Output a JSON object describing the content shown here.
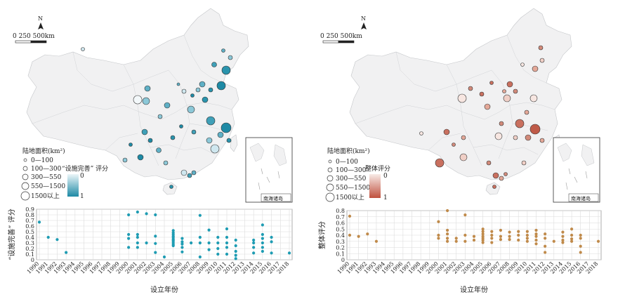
{
  "left_panel": {
    "scale_label": "0  250 500km",
    "north_label": "N",
    "legend_area_title": "陆地面积(km²)",
    "legend_area_classes": [
      "0—100",
      "100—300",
      "300—550",
      "550—1500",
      "1500以上"
    ],
    "legend_score_title": "“设施完善” 评分",
    "legend_score_min": "0",
    "legend_score_max": "1",
    "inset_label": "南海诸岛",
    "color_high": "#1e8aa5",
    "color_low": "#e6f3f7"
  },
  "right_panel": {
    "scale_label": "0  250 500km",
    "north_label": "N",
    "legend_area_title": "陆地面积(km²)",
    "legend_area_classes": [
      "0—100",
      "100—300",
      "300—550",
      "550—1500",
      "1500以上"
    ],
    "legend_score_title": "整体评分",
    "legend_score_min": "0",
    "legend_score_max": "1",
    "inset_label": "南海诸岛",
    "color_high": "#c0513f",
    "color_low": "#f8e8e4"
  },
  "chart_data": [
    {
      "type": "scatter",
      "color": "#1e9cb3",
      "xlabel": "设立年份",
      "ylabel": "“设施完善” 评分",
      "ylim": [
        0,
        0.9
      ],
      "yticks": [
        "0",
        "0.1",
        "0.2",
        "0.3",
        "0.4",
        "0.5",
        "0.6",
        "0.7",
        "0.8",
        "0.9"
      ],
      "xticks": [
        "1990",
        "1991",
        "1992",
        "1993",
        "1994",
        "1995",
        "1996",
        "1997",
        "1998",
        "1999",
        "2000",
        "2001",
        "2002",
        "2003",
        "2004",
        "2005",
        "2006",
        "2007",
        "2008",
        "2009",
        "2010",
        "2011",
        "2012",
        "2013",
        "2014",
        "2015",
        "2016",
        "2017",
        "2018"
      ],
      "points": [
        [
          1990,
          0.67
        ],
        [
          1991,
          0.4
        ],
        [
          1992,
          0.36
        ],
        [
          1993,
          0.13
        ],
        [
          2000,
          0.8
        ],
        [
          2000,
          0.45
        ],
        [
          2000,
          0.38
        ],
        [
          2000,
          0.22
        ],
        [
          2001,
          0.85
        ],
        [
          2001,
          0.45
        ],
        [
          2001,
          0.4
        ],
        [
          2001,
          0.3
        ],
        [
          2001,
          0.22
        ],
        [
          2002,
          0.82
        ],
        [
          2002,
          0.3
        ],
        [
          2003,
          0.8
        ],
        [
          2003,
          0.42
        ],
        [
          2003,
          0.29
        ],
        [
          2003,
          0.13
        ],
        [
          2004,
          0.05
        ],
        [
          2005,
          0.52
        ],
        [
          2005,
          0.48
        ],
        [
          2005,
          0.45
        ],
        [
          2005,
          0.42
        ],
        [
          2005,
          0.4
        ],
        [
          2005,
          0.37
        ],
        [
          2005,
          0.35
        ],
        [
          2005,
          0.33
        ],
        [
          2005,
          0.3
        ],
        [
          2005,
          0.27
        ],
        [
          2005,
          0.25
        ],
        [
          2006,
          0.38
        ],
        [
          2006,
          0.32
        ],
        [
          2006,
          0.28
        ],
        [
          2006,
          0.22
        ],
        [
          2006,
          0.14
        ],
        [
          2007,
          0.3
        ],
        [
          2008,
          0.79
        ],
        [
          2008,
          0.4
        ],
        [
          2008,
          0.3
        ],
        [
          2008,
          0.05
        ],
        [
          2009,
          0.53
        ],
        [
          2009,
          0.3
        ],
        [
          2009,
          0.18
        ],
        [
          2010,
          0.4
        ],
        [
          2010,
          0.3
        ],
        [
          2010,
          0.2
        ],
        [
          2010,
          0.1
        ],
        [
          2011,
          0.55
        ],
        [
          2011,
          0.4
        ],
        [
          2011,
          0.3
        ],
        [
          2011,
          0.22
        ],
        [
          2011,
          0.1
        ],
        [
          2012,
          0.35
        ],
        [
          2012,
          0.25
        ],
        [
          2012,
          0.15
        ],
        [
          2012,
          0.08
        ],
        [
          2012,
          0.02
        ],
        [
          2014,
          0.35
        ],
        [
          2014,
          0.3
        ],
        [
          2014,
          0.22
        ],
        [
          2014,
          0.12
        ],
        [
          2015,
          0.62
        ],
        [
          2015,
          0.45
        ],
        [
          2015,
          0.38
        ],
        [
          2015,
          0.3
        ],
        [
          2015,
          0.22
        ],
        [
          2015,
          0.15
        ],
        [
          2016,
          0.4
        ],
        [
          2016,
          0.32
        ],
        [
          2016,
          0.12
        ],
        [
          2018,
          0.12
        ]
      ]
    },
    {
      "type": "scatter",
      "color": "#c08a4a",
      "xlabel": "设立年份",
      "ylabel": "整体评分",
      "ylim": [
        0,
        0.8
      ],
      "yticks": [
        "0",
        "0.1",
        "0.2",
        "0.3",
        "0.4",
        "0.5",
        "0.6",
        "0.7",
        "0.8"
      ],
      "xticks": [
        "1990",
        "1991",
        "1992",
        "1993",
        "1994",
        "1995",
        "1996",
        "1997",
        "1998",
        "1999",
        "2000",
        "2001",
        "2002",
        "2003",
        "2004",
        "2005",
        "2006",
        "2007",
        "2008",
        "2009",
        "2010",
        "2011",
        "2012",
        "2013",
        "2014",
        "2015",
        "2016",
        "2017",
        "2018"
      ],
      "points": [
        [
          1990,
          0.71
        ],
        [
          1990,
          0.4
        ],
        [
          1991,
          0.38
        ],
        [
          1992,
          0.42
        ],
        [
          1993,
          0.3
        ],
        [
          2000,
          0.62
        ],
        [
          2000,
          0.4
        ],
        [
          2000,
          0.35
        ],
        [
          2001,
          0.8
        ],
        [
          2001,
          0.48
        ],
        [
          2001,
          0.42
        ],
        [
          2001,
          0.35
        ],
        [
          2001,
          0.3
        ],
        [
          2002,
          0.35
        ],
        [
          2002,
          0.3
        ],
        [
          2003,
          0.73
        ],
        [
          2003,
          0.4
        ],
        [
          2003,
          0.3
        ],
        [
          2004,
          0.38
        ],
        [
          2004,
          0.32
        ],
        [
          2005,
          0.5
        ],
        [
          2005,
          0.46
        ],
        [
          2005,
          0.42
        ],
        [
          2005,
          0.38
        ],
        [
          2005,
          0.35
        ],
        [
          2005,
          0.32
        ],
        [
          2005,
          0.28
        ],
        [
          2006,
          0.46
        ],
        [
          2006,
          0.4
        ],
        [
          2006,
          0.35
        ],
        [
          2006,
          0.28
        ],
        [
          2007,
          0.48
        ],
        [
          2007,
          0.38
        ],
        [
          2007,
          0.33
        ],
        [
          2008,
          0.45
        ],
        [
          2008,
          0.38
        ],
        [
          2008,
          0.33
        ],
        [
          2009,
          0.46
        ],
        [
          2009,
          0.4
        ],
        [
          2009,
          0.32
        ],
        [
          2010,
          0.46
        ],
        [
          2010,
          0.4
        ],
        [
          2010,
          0.35
        ],
        [
          2010,
          0.3
        ],
        [
          2011,
          0.48
        ],
        [
          2011,
          0.42
        ],
        [
          2011,
          0.38
        ],
        [
          2011,
          0.32
        ],
        [
          2011,
          0.26
        ],
        [
          2012,
          0.42
        ],
        [
          2012,
          0.35
        ],
        [
          2012,
          0.22
        ],
        [
          2012,
          0.12
        ],
        [
          2013,
          0.3
        ],
        [
          2014,
          0.45
        ],
        [
          2014,
          0.38
        ],
        [
          2014,
          0.32
        ],
        [
          2014,
          0.28
        ],
        [
          2015,
          0.5
        ],
        [
          2015,
          0.4
        ],
        [
          2015,
          0.34
        ],
        [
          2015,
          0.3
        ],
        [
          2016,
          0.4
        ],
        [
          2016,
          0.35
        ],
        [
          2016,
          0.22
        ],
        [
          2016,
          0.12
        ],
        [
          2018,
          0.3
        ]
      ]
    }
  ]
}
